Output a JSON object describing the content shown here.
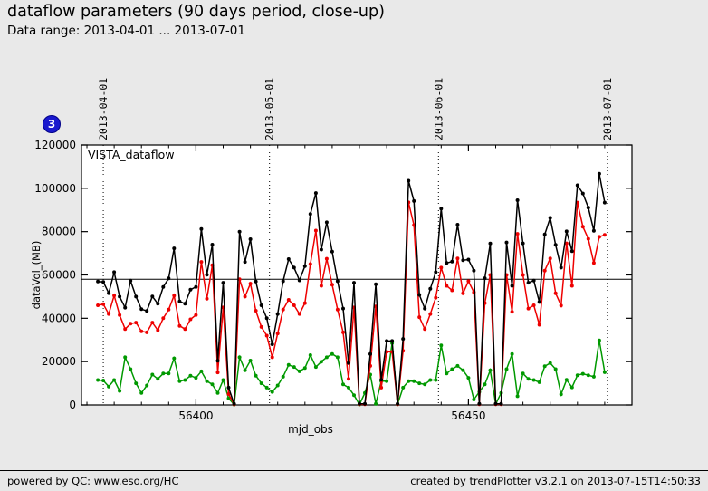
{
  "header": {
    "title": "dataflow parameters (90 days period, close-up)",
    "subtitle": "Data range: 2013-04-01 ... 2013-07-01"
  },
  "badge": {
    "label": "3"
  },
  "footer": {
    "left": "powered by QC: www.eso.org/HC",
    "right": "created by trendPlotter v3.2.1 on 2013-07-15T14:50:33"
  },
  "chart_data": {
    "type": "line",
    "inplot_label": "VISTA_dataflow",
    "xlabel": "mjd_obs",
    "ylabel": "dataVol_(MB)",
    "xlim": [
      56379,
      56480
    ],
    "ylim": [
      0,
      120000
    ],
    "x_major_ticks": [
      56400,
      56450
    ],
    "x_minor_step": 5,
    "y_major_ticks": [
      0,
      20000,
      40000,
      60000,
      80000,
      100000,
      120000
    ],
    "reference_line_y": 58000,
    "grid": "vertical dotted lines at month boundaries only",
    "legend_position": "top-left-inside",
    "month_markers": [
      {
        "label": "2013-04-01",
        "mjd": 56383
      },
      {
        "label": "2013-05-01",
        "mjd": 56413.5
      },
      {
        "label": "2013-06-01",
        "mjd": 56444.5
      },
      {
        "label": "2013-07-01",
        "mjd": 56475.5
      }
    ],
    "x_start": 56382,
    "x_step": 1,
    "series": [
      {
        "name": "black",
        "color": "#000000",
        "values": [
          57000,
          56800,
          51600,
          61300,
          50000,
          44900,
          57300,
          50000,
          44200,
          43400,
          50100,
          46700,
          54500,
          58400,
          72300,
          47800,
          46700,
          53200,
          54500,
          81200,
          60100,
          74000,
          20400,
          56400,
          8000,
          500,
          80000,
          66000,
          76500,
          57000,
          46000,
          40000,
          28000,
          42000,
          57100,
          67300,
          63400,
          57500,
          64100,
          88100,
          97800,
          71700,
          84300,
          70800,
          57100,
          44500,
          19300,
          56400,
          500,
          500,
          23500,
          55700,
          11600,
          29500,
          29500,
          500,
          30500,
          103500,
          94100,
          50800,
          44500,
          53600,
          61300,
          90600,
          65500,
          66200,
          83200,
          66800,
          67100,
          62000,
          500,
          58500,
          74500,
          500,
          500,
          75000,
          55000,
          94500,
          74600,
          56400,
          57400,
          47500,
          78700,
          86400,
          73900,
          63400,
          80100,
          71000,
          101400,
          97600,
          91100,
          80400,
          106700,
          93400
        ]
      },
      {
        "name": "red",
        "color": "#ee0000",
        "values": [
          46000,
          46500,
          42000,
          50500,
          41500,
          35000,
          37500,
          38000,
          34000,
          33500,
          38000,
          34500,
          40000,
          44000,
          50500,
          36500,
          35000,
          39500,
          41500,
          66000,
          49000,
          64500,
          15000,
          45000,
          5000,
          300,
          58000,
          50000,
          56000,
          43500,
          36000,
          32000,
          22000,
          33000,
          44000,
          48500,
          46000,
          42000,
          47000,
          65000,
          80500,
          55000,
          67500,
          55500,
          44000,
          33500,
          12000,
          45000,
          300,
          300,
          18000,
          45500,
          8000,
          24500,
          24500,
          300,
          25000,
          93500,
          83000,
          40500,
          35000,
          42000,
          49500,
          63400,
          55000,
          52900,
          67600,
          51500,
          57100,
          52000,
          300,
          47000,
          60000,
          300,
          300,
          60000,
          43000,
          79000,
          60000,
          44500,
          46000,
          37000,
          62000,
          67600,
          51500,
          45900,
          74600,
          55000,
          93400,
          82300,
          76700,
          65500,
          77600,
          78500
        ]
      },
      {
        "name": "green",
        "color": "#009900",
        "values": [
          11500,
          11300,
          8500,
          11500,
          6500,
          22000,
          16500,
          10000,
          5500,
          9000,
          14000,
          12000,
          14500,
          14500,
          21500,
          11000,
          11500,
          13500,
          12500,
          15500,
          11000,
          9500,
          5500,
          11500,
          3000,
          200,
          22000,
          16000,
          20500,
          13500,
          10000,
          8000,
          6000,
          9000,
          13000,
          18500,
          17500,
          15500,
          17000,
          23000,
          17500,
          20000,
          22000,
          23500,
          22000,
          9500,
          8000,
          4500,
          200,
          5500,
          14000,
          500,
          11000,
          11000,
          28500,
          300,
          8000,
          11000,
          11000,
          10000,
          9500,
          11500,
          11500,
          27500,
          14500,
          16500,
          18000,
          16000,
          12500,
          2500,
          6000,
          9500,
          16000,
          400,
          5500,
          16500,
          23500,
          4000,
          14500,
          12000,
          11500,
          10500,
          17900,
          19300,
          16500,
          4900,
          11600,
          8100,
          13700,
          14400,
          13700,
          13000,
          29800,
          15100
        ]
      }
    ]
  }
}
